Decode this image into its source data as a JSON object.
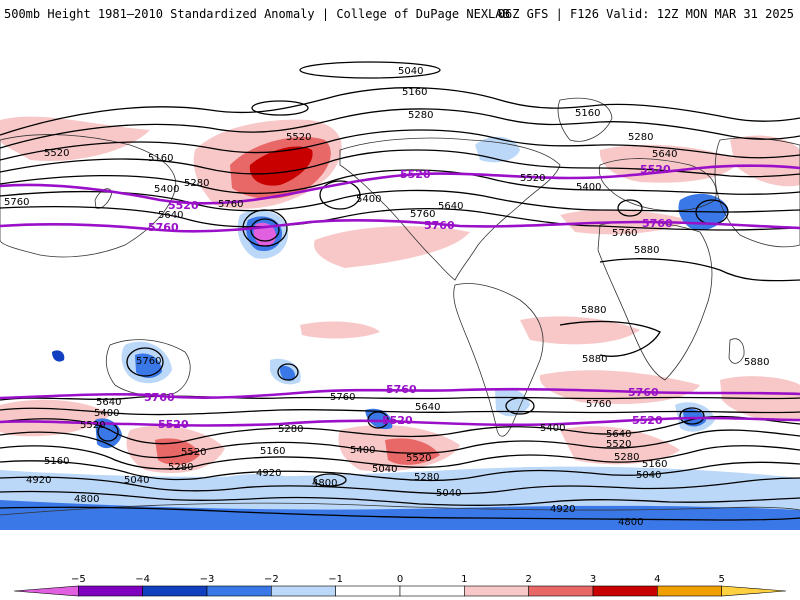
{
  "header": {
    "left_title": "500mb Height 1981–2010 Standardized Anomaly | College of DuPage NEXLAB",
    "right_title": "06Z GFS | F126 Valid: 12Z MON MAR 31 2025"
  },
  "map": {
    "projection": "global cylindrical",
    "contour_labels": [
      {
        "id": "c5040-top",
        "text": "5040"
      },
      {
        "id": "c5160-npac",
        "text": "5160"
      },
      {
        "id": "c5280-nam",
        "text": "5280"
      },
      {
        "id": "c5160-atl",
        "text": "5160"
      },
      {
        "id": "c5520-pac",
        "text": "5520"
      },
      {
        "id": "c5280-pac",
        "text": "5280"
      },
      {
        "id": "c5640-eur",
        "text": "5640"
      },
      {
        "id": "c5520-w",
        "text": "5520"
      },
      {
        "id": "c5160-w",
        "text": "5160"
      },
      {
        "id": "c5400-w",
        "text": "5400"
      },
      {
        "id": "c5280-w",
        "text": "5280"
      },
      {
        "id": "c5640-w",
        "text": "5640"
      },
      {
        "id": "c5760-w",
        "text": "5760"
      },
      {
        "id": "c5400-nam",
        "text": "5400"
      },
      {
        "id": "c5520-nam",
        "text": "5520"
      },
      {
        "id": "c5400-atl",
        "text": "5400"
      },
      {
        "id": "c5640-nam",
        "text": "5640"
      },
      {
        "id": "c5760-nam",
        "text": "5760"
      },
      {
        "id": "c5760-pac",
        "text": "5760"
      },
      {
        "id": "c5760-asia",
        "text": "5760"
      },
      {
        "id": "c5880-afr",
        "text": "5880"
      },
      {
        "id": "c5880-atl",
        "text": "5880"
      },
      {
        "id": "c5880-sam",
        "text": "5880"
      },
      {
        "id": "c5880-safr",
        "text": "5880"
      },
      {
        "id": "c5760-aus",
        "text": "5760"
      },
      {
        "id": "c5640-s1",
        "text": "5640"
      },
      {
        "id": "c5400-s1",
        "text": "5400"
      },
      {
        "id": "c5520-s1",
        "text": "5520"
      },
      {
        "id": "c5760-s2",
        "text": "5760"
      },
      {
        "id": "c5640-s2",
        "text": "5640"
      },
      {
        "id": "c5520-s2",
        "text": "5520"
      },
      {
        "id": "c5280-s2",
        "text": "5280"
      },
      {
        "id": "c5160-s3",
        "text": "5160"
      },
      {
        "id": "c5400-s3",
        "text": "5400"
      },
      {
        "id": "c5520-s3",
        "text": "5520"
      },
      {
        "id": "c5760-s4",
        "text": "5760"
      },
      {
        "id": "c5400-s4",
        "text": "5400"
      },
      {
        "id": "c5640-s4",
        "text": "5640"
      },
      {
        "id": "c5520-s4",
        "text": "5520"
      },
      {
        "id": "c5280-s4",
        "text": "5280"
      },
      {
        "id": "c5160-s4",
        "text": "5160"
      },
      {
        "id": "c5040-s4",
        "text": "5040"
      },
      {
        "id": "c5160-s5",
        "text": "5160"
      },
      {
        "id": "c5040-s5",
        "text": "5040"
      },
      {
        "id": "c4920-s5",
        "text": "4920"
      },
      {
        "id": "c5040-s6",
        "text": "5040"
      },
      {
        "id": "c5280-s6",
        "text": "5280"
      },
      {
        "id": "c5040-s7",
        "text": "5040"
      },
      {
        "id": "c4920-s8",
        "text": "4920"
      },
      {
        "id": "c4800-s8",
        "text": "4800"
      },
      {
        "id": "c4920-s9",
        "text": "4920"
      },
      {
        "id": "c4800-s9",
        "text": "4800"
      },
      {
        "id": "c4800-s10",
        "text": "4800"
      },
      {
        "id": "c5280-s7",
        "text": "5280"
      }
    ],
    "purple_labels": [
      {
        "id": "p5520-nam",
        "text": "5520"
      },
      {
        "id": "p5520-eur",
        "text": "5520"
      },
      {
        "id": "p5520-w",
        "text": "5520"
      },
      {
        "id": "p5760-w",
        "text": "5760"
      },
      {
        "id": "p5760-atl",
        "text": "5760"
      },
      {
        "id": "p5760-e",
        "text": "5760"
      },
      {
        "id": "p5760-s1",
        "text": "5760"
      },
      {
        "id": "p5760-s2",
        "text": "5760"
      },
      {
        "id": "p5760-s3",
        "text": "5760"
      },
      {
        "id": "p5520-s1",
        "text": "5520"
      },
      {
        "id": "p5520-s2",
        "text": "5520"
      },
      {
        "id": "p5520-s3",
        "text": "5520"
      }
    ]
  },
  "colorbar": {
    "ticks": [
      "−5",
      "−4",
      "−3",
      "−2",
      "−1",
      "0",
      "1",
      "2",
      "3",
      "4",
      "5"
    ],
    "colors": [
      "#e060e0",
      "#8000c0",
      "#1040c0",
      "#3a78e8",
      "#bcd8f8",
      "#ffffff",
      "#ffffff",
      "#f8c8c8",
      "#e86868",
      "#c80000",
      "#f0a000",
      "#ffd040"
    ]
  },
  "palette": {
    "purple": "#9a10c8",
    "anomaly_pos_light": "#f8c8c8",
    "anomaly_pos_mid": "#e86868",
    "anomaly_pos_strong": "#c80000",
    "anomaly_neg_light": "#bcd8f8",
    "anomaly_neg_mid": "#3a78e8",
    "anomaly_neg_strong": "#1040c0",
    "anomaly_neg_extreme": "#e060e0"
  }
}
